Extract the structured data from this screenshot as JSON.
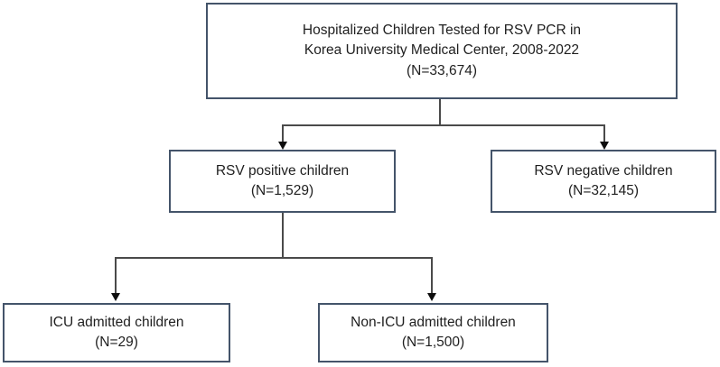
{
  "diagram": {
    "type": "flowchart",
    "nodes": {
      "root": {
        "line1": "Hospitalized Children Tested for RSV PCR in",
        "line2": "Korea University Medical Center, 2008-2022",
        "count": "(N=33,674)"
      },
      "rsv_positive": {
        "label": "RSV positive children",
        "count": "(N=1,529)"
      },
      "rsv_negative": {
        "label": "RSV negative children",
        "count": "(N=32,145)"
      },
      "icu": {
        "label": "ICU admitted children",
        "count": "(N=29)"
      },
      "non_icu": {
        "label": "Non-ICU admitted children",
        "count": "(N=1,500)"
      }
    },
    "edges": [
      {
        "from": "root",
        "to": "rsv_positive"
      },
      {
        "from": "root",
        "to": "rsv_negative"
      },
      {
        "from": "rsv_positive",
        "to": "icu"
      },
      {
        "from": "rsv_positive",
        "to": "non_icu"
      }
    ],
    "colors": {
      "box_border": "#44546A",
      "box_fill": "#ffffff",
      "connector_line": "#4a4a4a",
      "arrowhead": "#0d0d0d",
      "text": "#1f1f1f",
      "background": "#ffffff"
    }
  }
}
